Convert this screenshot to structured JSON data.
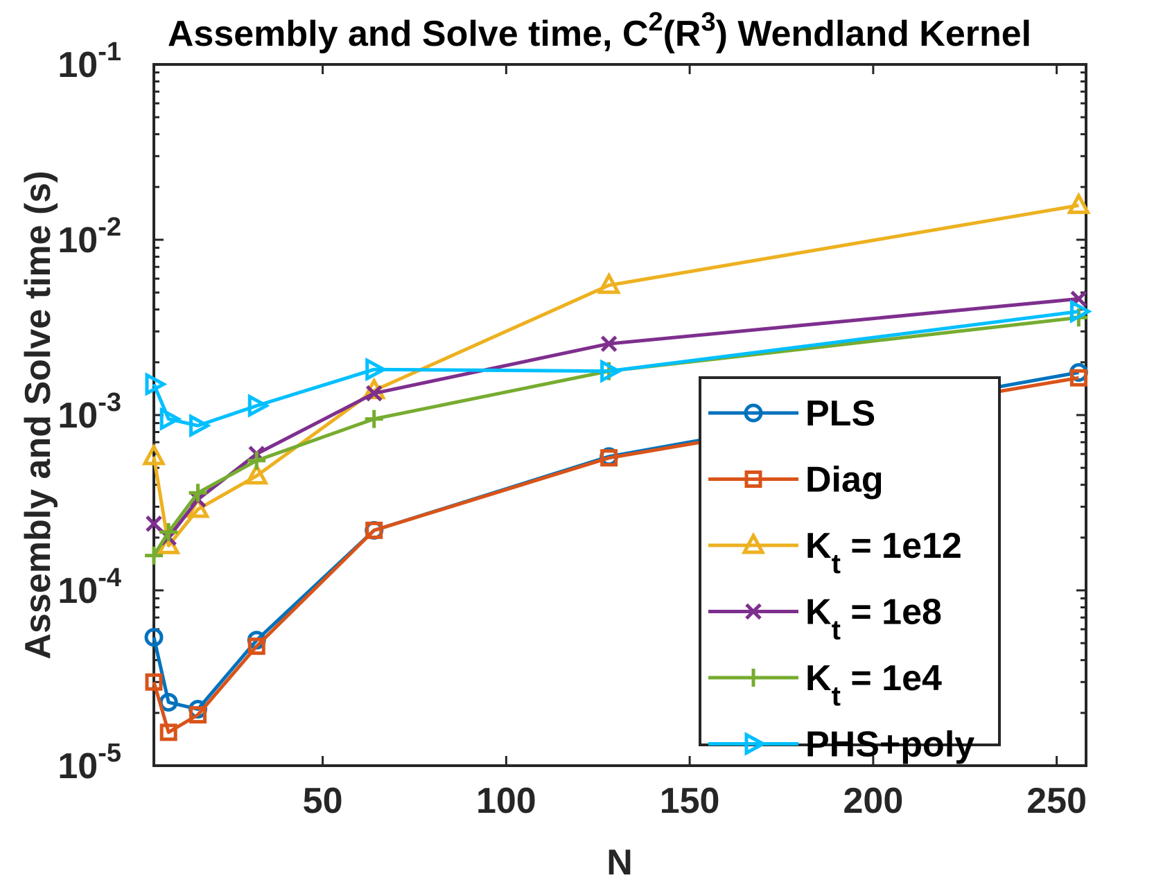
{
  "chart_data": {
    "type": "line",
    "yscale": "log",
    "title": "Assembly and Solve time, C2(R3) Wendland Kernel",
    "title_parts": {
      "prefix": "Assembly and Solve time, C",
      "sup1": "2",
      "mid": "(R",
      "sup2": "3",
      "suffix": ") Wendland Kernel"
    },
    "xlabel": "N",
    "ylabel": "Assembly and Solve time (s)",
    "xlim": [
      4,
      258
    ],
    "ylim": [
      1e-05,
      0.1
    ],
    "x_ticks": [
      50,
      100,
      150,
      200,
      250
    ],
    "x_tick_labels": [
      "50",
      "100",
      "150",
      "200",
      "250"
    ],
    "y_ticks": [
      {
        "base": "10",
        "exp": "-1",
        "value": 0.1
      },
      {
        "base": "10",
        "exp": "-2",
        "value": 0.01
      },
      {
        "base": "10",
        "exp": "-3",
        "value": 0.001
      },
      {
        "base": "10",
        "exp": "-4",
        "value": 0.0001
      },
      {
        "base": "10",
        "exp": "-5",
        "value": 1e-05
      }
    ],
    "x": [
      4,
      8,
      16,
      32,
      64,
      128,
      256
    ],
    "legend_position": "bottom-right",
    "series": [
      {
        "name": "PLS",
        "label": "PLS",
        "color": "#0072BD",
        "marker": "circle",
        "values": [
          5.4e-05,
          2.3e-05,
          2.1e-05,
          5.2e-05,
          0.00022,
          0.00058,
          0.00175
        ]
      },
      {
        "name": "Diag",
        "label": "Diag",
        "color": "#D95319",
        "marker": "square",
        "values": [
          3e-05,
          1.55e-05,
          1.95e-05,
          4.8e-05,
          0.00022,
          0.00057,
          0.00163
        ]
      },
      {
        "name": "K_t = 1e12",
        "label": "K",
        "sub": "t",
        "rest": " = 1e12",
        "color": "#EDB120",
        "marker": "triangle-up",
        "values": [
          0.00058,
          0.00018,
          0.00029,
          0.00045,
          0.00138,
          0.0055,
          0.0157
        ]
      },
      {
        "name": "K_t = 1e8",
        "label": "K",
        "sub": "t",
        "rest": " = 1e8",
        "color": "#7E2F8E",
        "marker": "x",
        "values": [
          0.00024,
          0.0002,
          0.00033,
          0.0006,
          0.00133,
          0.00255,
          0.0046
        ]
      },
      {
        "name": "K_t = 1e4",
        "label": "K",
        "sub": "t",
        "rest": " = 1e4",
        "color": "#77AC30",
        "marker": "plus",
        "values": [
          0.000158,
          0.000215,
          0.00036,
          0.00055,
          0.00095,
          0.00178,
          0.0036
        ]
      },
      {
        "name": "PHS+poly",
        "label": "PHS+poly",
        "color": "#00BFFF",
        "marker": "triangle-right",
        "values": [
          0.0015,
          0.00095,
          0.00087,
          0.00113,
          0.00182,
          0.00178,
          0.0039
        ]
      }
    ]
  }
}
